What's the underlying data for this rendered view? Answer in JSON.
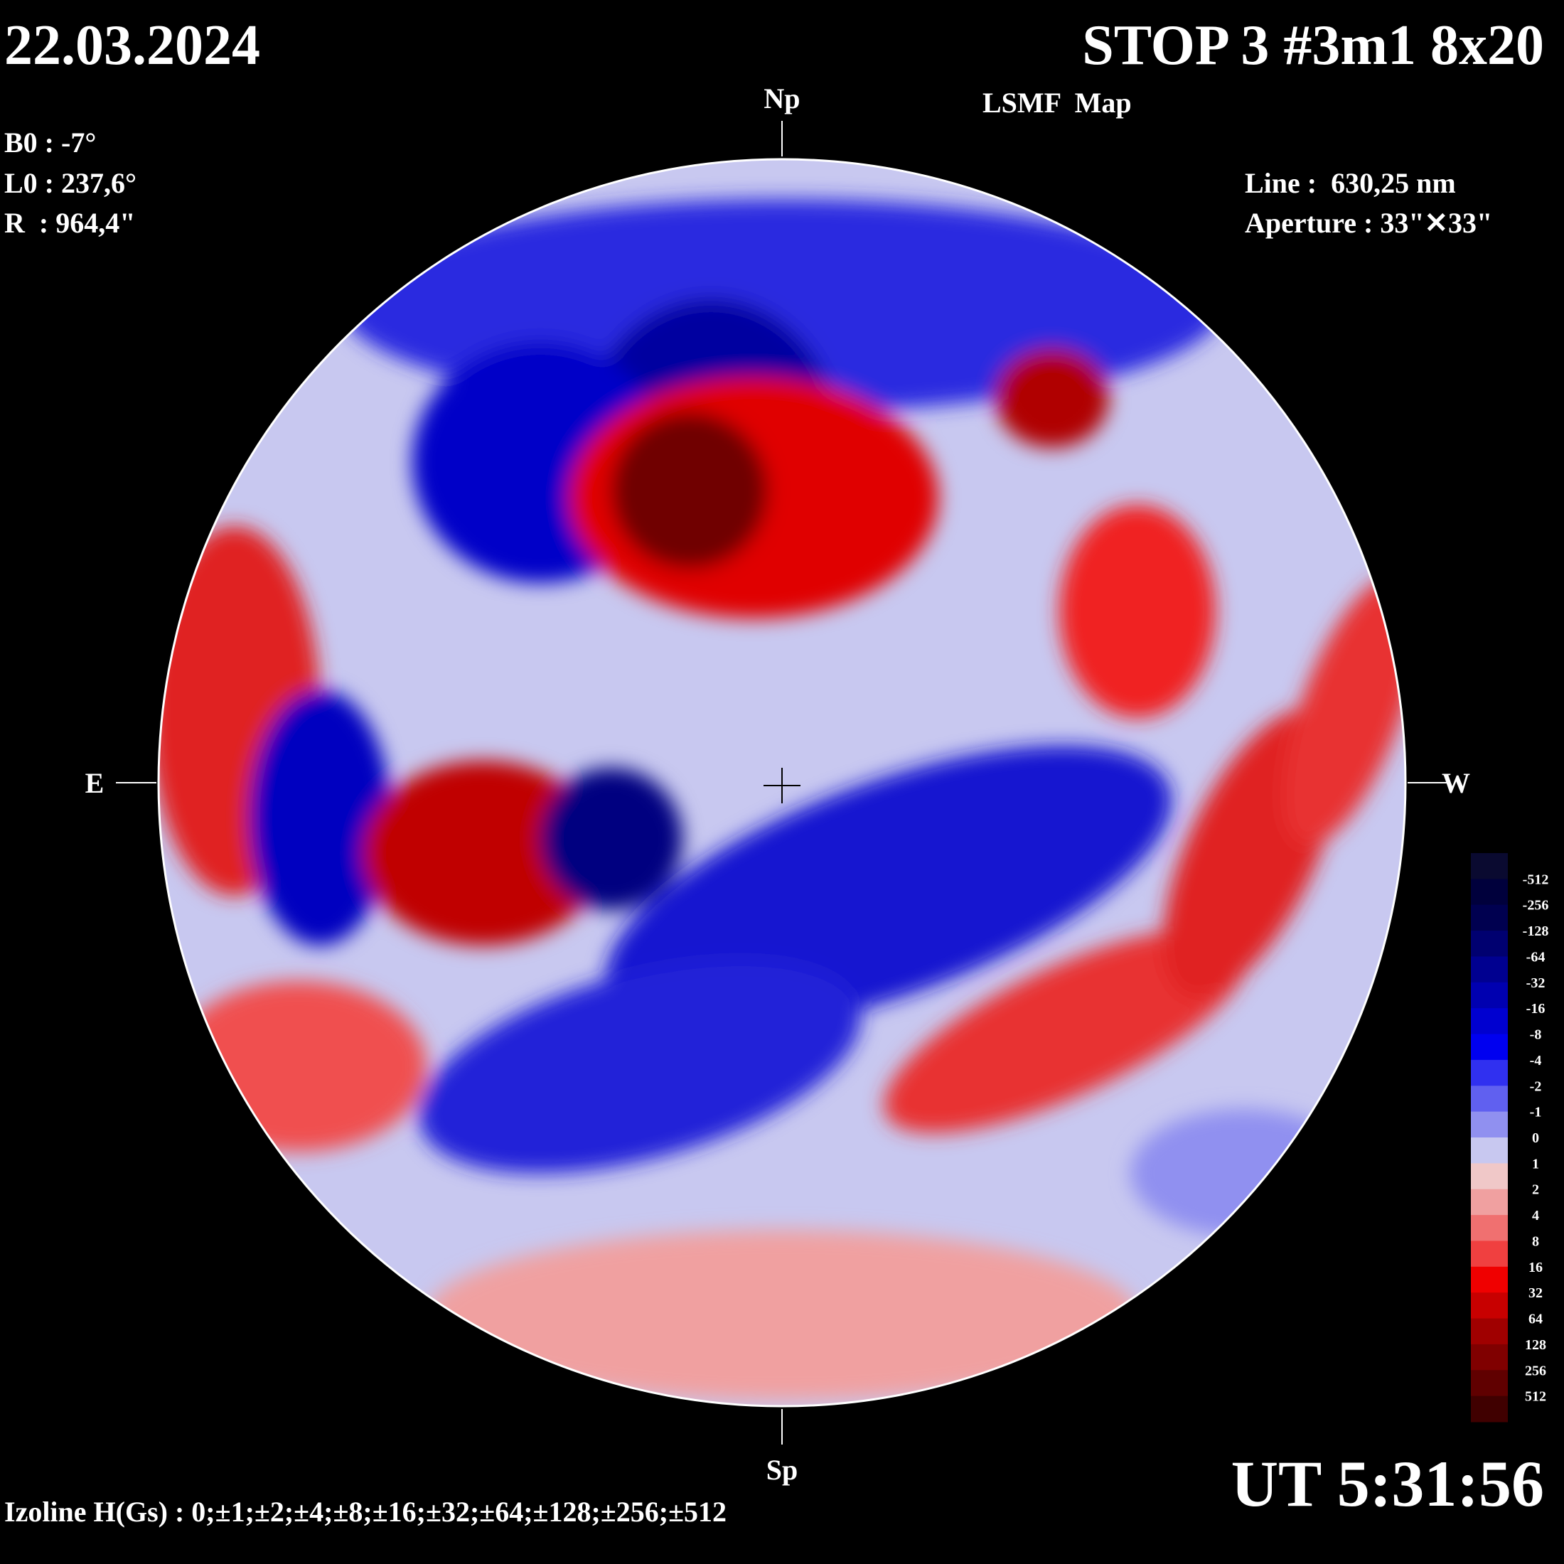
{
  "header": {
    "date": "22.03.2024",
    "title": "STOP 3 #3m1 8x20",
    "subtitle": "LSMF  Map"
  },
  "params": {
    "b0": "B0 : -7°",
    "l0": "L0 : 237,6°",
    "r": "R  : 964,4\""
  },
  "instrument": {
    "line": "Line :  630,25 nm",
    "aperture": "Aperture : 33\"✕33\""
  },
  "directions": {
    "north": "Np",
    "south": "Sp",
    "east": "E",
    "west": "W"
  },
  "legend": {
    "labels": [
      "-512",
      "-256",
      "-128",
      "-64",
      "-32",
      "-16",
      "-8",
      "-4",
      "-2",
      "-1",
      "0",
      "1",
      "2",
      "4",
      "8",
      "16",
      "32",
      "64",
      "128",
      "256",
      "512"
    ]
  },
  "footer": {
    "izolines": "Izoline H(Gs) : 0;±1;±2;±4;±8;±16;±32;±64;±128;±256;±512",
    "time": "UT 5:31:56"
  }
}
